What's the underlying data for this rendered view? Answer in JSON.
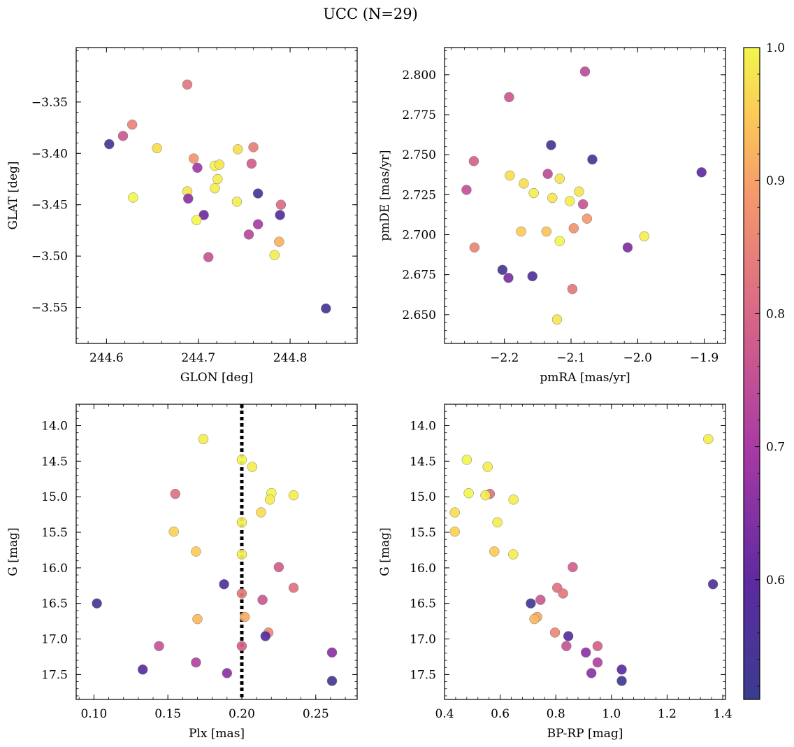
{
  "figure": {
    "title": "UCC (N=29)"
  },
  "colorbar": {
    "colormap": "plasma",
    "range": [
      0.51,
      1.0
    ],
    "ticks": [
      0.6,
      0.7,
      0.8,
      0.9,
      1.0
    ],
    "tick_labels": [
      "0.6",
      "0.7",
      "0.8",
      "0.9",
      "1.0"
    ]
  },
  "chart_data": [
    {
      "type": "scatter",
      "id": "glon-glat",
      "xlabel": "GLON [deg]",
      "ylabel": "GLAT [deg]",
      "xlim": [
        244.567,
        244.873
      ],
      "ylim": [
        -3.585,
        -3.297
      ],
      "y_inverted": false,
      "xticks": [
        244.6,
        244.7,
        244.8
      ],
      "xtick_labels": [
        "244.6",
        "244.7",
        "244.8"
      ],
      "yticks": [
        -3.35,
        -3.4,
        -3.45,
        -3.5,
        -3.55
      ],
      "ytick_labels": [
        "−3.35",
        "−3.40",
        "−3.45",
        "−3.50",
        "−3.55"
      ],
      "points": [
        {
          "x": 244.688,
          "y": -3.333,
          "c": 0.83
        },
        {
          "x": 244.628,
          "y": -3.372,
          "c": 0.85
        },
        {
          "x": 244.618,
          "y": -3.383,
          "c": 0.77
        },
        {
          "x": 244.603,
          "y": -3.391,
          "c": 0.53
        },
        {
          "x": 244.655,
          "y": -3.395,
          "c": 0.97
        },
        {
          "x": 244.743,
          "y": -3.396,
          "c": 0.97
        },
        {
          "x": 244.76,
          "y": -3.394,
          "c": 0.84
        },
        {
          "x": 244.695,
          "y": -3.405,
          "c": 0.88
        },
        {
          "x": 244.758,
          "y": -3.41,
          "c": 0.78
        },
        {
          "x": 244.718,
          "y": -3.412,
          "c": 1.0
        },
        {
          "x": 244.723,
          "y": -3.411,
          "c": 0.98
        },
        {
          "x": 244.699,
          "y": -3.414,
          "c": 0.69
        },
        {
          "x": 244.721,
          "y": -3.425,
          "c": 0.99
        },
        {
          "x": 244.718,
          "y": -3.434,
          "c": 0.99
        },
        {
          "x": 244.688,
          "y": -3.437,
          "c": 0.98
        },
        {
          "x": 244.765,
          "y": -3.439,
          "c": 0.55
        },
        {
          "x": 244.629,
          "y": -3.443,
          "c": 1.0
        },
        {
          "x": 244.689,
          "y": -3.444,
          "c": 0.66
        },
        {
          "x": 244.742,
          "y": -3.447,
          "c": 0.99
        },
        {
          "x": 244.79,
          "y": -3.45,
          "c": 0.81
        },
        {
          "x": 244.706,
          "y": -3.46,
          "c": 0.62
        },
        {
          "x": 244.789,
          "y": -3.46,
          "c": 0.58
        },
        {
          "x": 244.698,
          "y": -3.465,
          "c": 1.0
        },
        {
          "x": 244.765,
          "y": -3.469,
          "c": 0.7
        },
        {
          "x": 244.755,
          "y": -3.479,
          "c": 0.73
        },
        {
          "x": 244.788,
          "y": -3.486,
          "c": 0.92
        },
        {
          "x": 244.783,
          "y": -3.499,
          "c": 0.99
        },
        {
          "x": 244.711,
          "y": -3.501,
          "c": 0.76
        },
        {
          "x": 244.839,
          "y": -3.551,
          "c": 0.53
        }
      ]
    },
    {
      "type": "scatter",
      "id": "pmra-pmde",
      "xlabel": "pmRA [mas/yr]",
      "ylabel": "pmDE [mas/yr]",
      "xlim": [
        -2.29,
        -1.868
      ],
      "ylim": [
        2.632,
        2.817
      ],
      "y_inverted": false,
      "xticks": [
        -2.2,
        -2.1,
        -2.0,
        -1.9
      ],
      "xtick_labels": [
        "−2.2",
        "−2.1",
        "−2.0",
        "−1.9"
      ],
      "yticks": [
        2.65,
        2.675,
        2.7,
        2.725,
        2.75,
        2.775,
        2.8
      ],
      "ytick_labels": [
        "2.650",
        "2.675",
        "2.700",
        "2.725",
        "2.750",
        "2.775",
        "2.800"
      ],
      "points": [
        {
          "x": -2.079,
          "y": 2.802,
          "c": 0.74
        },
        {
          "x": -2.193,
          "y": 2.786,
          "c": 0.77
        },
        {
          "x": -2.13,
          "y": 2.756,
          "c": 0.53
        },
        {
          "x": -2.068,
          "y": 2.747,
          "c": 0.55
        },
        {
          "x": -2.246,
          "y": 2.746,
          "c": 0.79
        },
        {
          "x": -1.904,
          "y": 2.739,
          "c": 0.6
        },
        {
          "x": -2.135,
          "y": 2.738,
          "c": 0.74
        },
        {
          "x": -2.192,
          "y": 2.737,
          "c": 0.97
        },
        {
          "x": -2.117,
          "y": 2.735,
          "c": 0.98
        },
        {
          "x": -2.171,
          "y": 2.732,
          "c": 0.97
        },
        {
          "x": -2.257,
          "y": 2.728,
          "c": 0.75
        },
        {
          "x": -2.088,
          "y": 2.727,
          "c": 0.98
        },
        {
          "x": -2.156,
          "y": 2.726,
          "c": 0.99
        },
        {
          "x": -2.128,
          "y": 2.723,
          "c": 0.98
        },
        {
          "x": -2.102,
          "y": 2.721,
          "c": 0.99
        },
        {
          "x": -2.082,
          "y": 2.719,
          "c": 0.76
        },
        {
          "x": -2.076,
          "y": 2.71,
          "c": 0.89
        },
        {
          "x": -2.096,
          "y": 2.704,
          "c": 0.88
        },
        {
          "x": -2.137,
          "y": 2.702,
          "c": 0.94
        },
        {
          "x": -2.175,
          "y": 2.702,
          "c": 0.95
        },
        {
          "x": -1.99,
          "y": 2.699,
          "c": 0.99
        },
        {
          "x": -2.117,
          "y": 2.696,
          "c": 1.0
        },
        {
          "x": -2.245,
          "y": 2.692,
          "c": 0.85
        },
        {
          "x": -2.015,
          "y": 2.692,
          "c": 0.64
        },
        {
          "x": -2.203,
          "y": 2.678,
          "c": 0.53
        },
        {
          "x": -2.158,
          "y": 2.674,
          "c": 0.56
        },
        {
          "x": -2.194,
          "y": 2.673,
          "c": 0.64
        },
        {
          "x": -2.098,
          "y": 2.666,
          "c": 0.83
        },
        {
          "x": -2.121,
          "y": 2.647,
          "c": 0.98
        }
      ]
    },
    {
      "type": "scatter",
      "id": "plx-g",
      "xlabel": "Plx [mas]",
      "ylabel": "G [mag]",
      "xlim": [
        0.088,
        0.278
      ],
      "ylim": [
        17.85,
        13.7
      ],
      "y_inverted": true,
      "xticks": [
        0.1,
        0.15,
        0.2,
        0.25
      ],
      "xtick_labels": [
        "0.10",
        "0.15",
        "0.20",
        "0.25"
      ],
      "yticks": [
        14.0,
        14.5,
        15.0,
        15.5,
        16.0,
        16.5,
        17.0,
        17.5
      ],
      "ytick_labels": [
        "14.0",
        "14.5",
        "15.0",
        "15.5",
        "16.0",
        "16.5",
        "17.0",
        "17.5"
      ],
      "vline": {
        "x": 0.2,
        "style": "dotted"
      },
      "points": [
        {
          "x": 0.174,
          "y": 14.19,
          "c": 0.99
        },
        {
          "x": 0.2,
          "y": 14.48,
          "c": 1.0
        },
        {
          "x": 0.207,
          "y": 14.58,
          "c": 0.99
        },
        {
          "x": 0.155,
          "y": 14.96,
          "c": 0.82
        },
        {
          "x": 0.22,
          "y": 14.95,
          "c": 1.0
        },
        {
          "x": 0.235,
          "y": 14.98,
          "c": 0.99
        },
        {
          "x": 0.219,
          "y": 15.04,
          "c": 0.99
        },
        {
          "x": 0.213,
          "y": 15.22,
          "c": 0.97
        },
        {
          "x": 0.2,
          "y": 15.36,
          "c": 0.99
        },
        {
          "x": 0.154,
          "y": 15.49,
          "c": 0.96
        },
        {
          "x": 0.169,
          "y": 15.77,
          "c": 0.95
        },
        {
          "x": 0.2,
          "y": 15.81,
          "c": 0.99
        },
        {
          "x": 0.225,
          "y": 15.99,
          "c": 0.78
        },
        {
          "x": 0.188,
          "y": 16.23,
          "c": 0.56
        },
        {
          "x": 0.235,
          "y": 16.28,
          "c": 0.82
        },
        {
          "x": 0.2,
          "y": 16.36,
          "c": 0.83
        },
        {
          "x": 0.214,
          "y": 16.45,
          "c": 0.77
        },
        {
          "x": 0.102,
          "y": 16.5,
          "c": 0.53
        },
        {
          "x": 0.202,
          "y": 16.69,
          "c": 0.91
        },
        {
          "x": 0.17,
          "y": 16.72,
          "c": 0.93
        },
        {
          "x": 0.218,
          "y": 16.91,
          "c": 0.86
        },
        {
          "x": 0.216,
          "y": 16.96,
          "c": 0.58
        },
        {
          "x": 0.144,
          "y": 17.1,
          "c": 0.76
        },
        {
          "x": 0.2,
          "y": 17.1,
          "c": 0.79
        },
        {
          "x": 0.261,
          "y": 17.19,
          "c": 0.66
        },
        {
          "x": 0.169,
          "y": 17.33,
          "c": 0.72
        },
        {
          "x": 0.133,
          "y": 17.43,
          "c": 0.59
        },
        {
          "x": 0.19,
          "y": 17.48,
          "c": 0.66
        },
        {
          "x": 0.261,
          "y": 17.59,
          "c": 0.53
        }
      ]
    },
    {
      "type": "scatter",
      "id": "bprp-g",
      "xlabel": "BP-RP [mag]",
      "ylabel": "G [mag]",
      "xlim": [
        0.4,
        1.41
      ],
      "ylim": [
        17.85,
        13.7
      ],
      "y_inverted": true,
      "xticks": [
        0.4,
        0.6,
        0.8,
        1.0,
        1.2,
        1.4
      ],
      "xtick_labels": [
        "0.4",
        "0.6",
        "0.8",
        "1.0",
        "1.2",
        "1.4"
      ],
      "yticks": [
        14.0,
        14.5,
        15.0,
        15.5,
        16.0,
        16.5,
        17.0,
        17.5
      ],
      "ytick_labels": [
        "14.0",
        "14.5",
        "15.0",
        "15.5",
        "16.0",
        "16.5",
        "17.0",
        "17.5"
      ],
      "points": [
        {
          "x": 1.348,
          "y": 14.19,
          "c": 0.99
        },
        {
          "x": 0.48,
          "y": 14.48,
          "c": 1.0
        },
        {
          "x": 0.555,
          "y": 14.58,
          "c": 0.99
        },
        {
          "x": 0.563,
          "y": 14.96,
          "c": 0.82
        },
        {
          "x": 0.487,
          "y": 14.95,
          "c": 1.0
        },
        {
          "x": 0.547,
          "y": 14.98,
          "c": 0.99
        },
        {
          "x": 0.648,
          "y": 15.04,
          "c": 0.99
        },
        {
          "x": 0.437,
          "y": 15.22,
          "c": 0.97
        },
        {
          "x": 0.59,
          "y": 15.36,
          "c": 0.99
        },
        {
          "x": 0.437,
          "y": 15.49,
          "c": 0.96
        },
        {
          "x": 0.579,
          "y": 15.77,
          "c": 0.95
        },
        {
          "x": 0.647,
          "y": 15.81,
          "c": 0.99
        },
        {
          "x": 0.861,
          "y": 15.99,
          "c": 0.78
        },
        {
          "x": 1.365,
          "y": 16.23,
          "c": 0.56
        },
        {
          "x": 0.805,
          "y": 16.28,
          "c": 0.82
        },
        {
          "x": 0.826,
          "y": 16.36,
          "c": 0.83
        },
        {
          "x": 0.745,
          "y": 16.45,
          "c": 0.77
        },
        {
          "x": 0.71,
          "y": 16.5,
          "c": 0.53
        },
        {
          "x": 0.733,
          "y": 16.69,
          "c": 0.91
        },
        {
          "x": 0.723,
          "y": 16.72,
          "c": 0.93
        },
        {
          "x": 0.797,
          "y": 16.91,
          "c": 0.86
        },
        {
          "x": 0.845,
          "y": 16.96,
          "c": 0.58
        },
        {
          "x": 0.838,
          "y": 17.1,
          "c": 0.76
        },
        {
          "x": 0.95,
          "y": 17.1,
          "c": 0.79
        },
        {
          "x": 0.908,
          "y": 17.19,
          "c": 0.66
        },
        {
          "x": 0.95,
          "y": 17.33,
          "c": 0.72
        },
        {
          "x": 1.037,
          "y": 17.43,
          "c": 0.59
        },
        {
          "x": 0.928,
          "y": 17.48,
          "c": 0.66
        },
        {
          "x": 1.037,
          "y": 17.59,
          "c": 0.53
        }
      ]
    }
  ]
}
